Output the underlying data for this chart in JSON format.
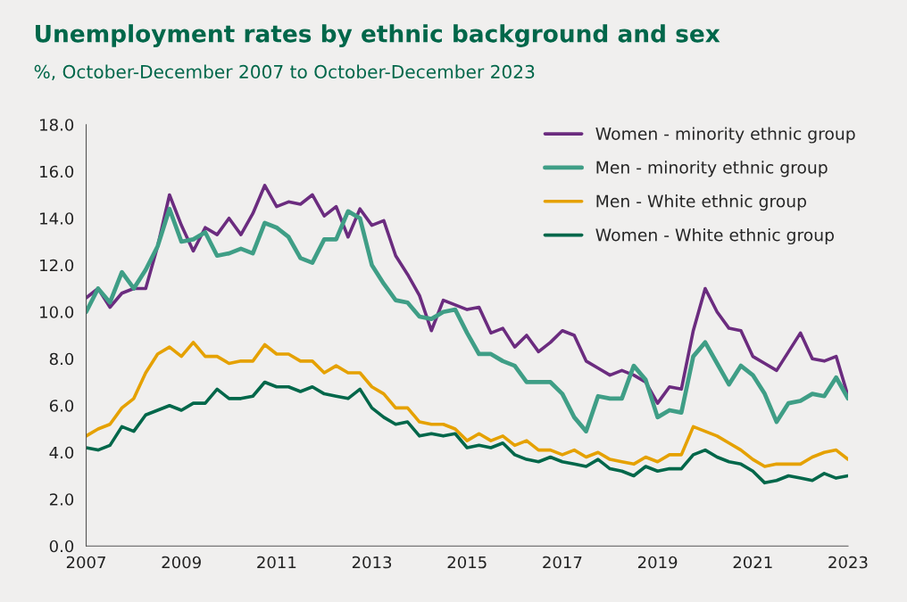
{
  "chart_data": {
    "type": "line",
    "title": "Unemployment rates by ethnic background and sex",
    "subtitle": "%, October-December 2007 to October-December 2023",
    "x": [
      2007,
      2007.25,
      2007.5,
      2007.75,
      2008,
      2008.25,
      2008.5,
      2008.75,
      2009,
      2009.25,
      2009.5,
      2009.75,
      2010,
      2010.25,
      2010.5,
      2010.75,
      2011,
      2011.25,
      2011.5,
      2011.75,
      2012,
      2012.25,
      2012.5,
      2012.75,
      2013,
      2013.25,
      2013.5,
      2013.75,
      2014,
      2014.25,
      2014.5,
      2014.75,
      2015,
      2015.25,
      2015.5,
      2015.75,
      2016,
      2016.25,
      2016.5,
      2016.75,
      2017,
      2017.25,
      2017.5,
      2017.75,
      2018,
      2018.25,
      2018.5,
      2018.75,
      2019,
      2019.25,
      2019.5,
      2019.75,
      2020,
      2020.25,
      2020.5,
      2020.75,
      2021,
      2021.25,
      2021.5,
      2021.75,
      2022,
      2022.25,
      2022.5,
      2022.75,
      2023
    ],
    "series": [
      {
        "name": "Women - minority ethnic group",
        "color": "#6b2c7f",
        "values": [
          10.6,
          11.0,
          10.2,
          10.8,
          11.0,
          11.0,
          12.8,
          15.0,
          13.7,
          12.6,
          13.6,
          13.3,
          14.0,
          13.3,
          14.2,
          15.4,
          14.5,
          14.7,
          14.6,
          15.0,
          14.1,
          14.5,
          13.2,
          14.4,
          13.7,
          13.9,
          12.4,
          11.6,
          10.7,
          9.2,
          10.5,
          10.3,
          10.1,
          10.2,
          9.1,
          9.3,
          8.5,
          9.0,
          8.3,
          8.7,
          9.2,
          9.0,
          7.9,
          7.6,
          7.3,
          7.5,
          7.3,
          7.0,
          6.1,
          6.8,
          6.7,
          9.2,
          11.0,
          10.0,
          9.3,
          9.2,
          8.1,
          7.8,
          7.5,
          8.3,
          9.1,
          8.0,
          7.9,
          8.1,
          6.4
        ]
      },
      {
        "name": "Men - minority ethnic group",
        "color": "#3f9e86",
        "values": [
          10.0,
          11.0,
          10.4,
          11.7,
          11.0,
          11.8,
          12.8,
          14.4,
          13.0,
          13.1,
          13.4,
          12.4,
          12.5,
          12.7,
          12.5,
          13.8,
          13.6,
          13.2,
          12.3,
          12.1,
          13.1,
          13.1,
          14.3,
          14.0,
          12.0,
          11.2,
          10.5,
          10.4,
          9.8,
          9.7,
          10.0,
          10.1,
          9.1,
          8.2,
          8.2,
          7.9,
          7.7,
          7.0,
          7.0,
          7.0,
          6.5,
          5.5,
          4.9,
          6.4,
          6.3,
          6.3,
          7.7,
          7.1,
          5.5,
          5.8,
          5.7,
          8.1,
          8.7,
          7.8,
          6.9,
          7.7,
          7.3,
          6.5,
          5.3,
          6.1,
          6.2,
          6.5,
          6.4,
          7.2,
          6.3
        ]
      },
      {
        "name": "Men - White ethnic group",
        "color": "#e5a100",
        "values": [
          4.7,
          5.0,
          5.2,
          5.9,
          6.3,
          7.4,
          8.2,
          8.5,
          8.1,
          8.7,
          8.1,
          8.1,
          7.8,
          7.9,
          7.9,
          8.6,
          8.2,
          8.2,
          7.9,
          7.9,
          7.4,
          7.7,
          7.4,
          7.4,
          6.8,
          6.5,
          5.9,
          5.9,
          5.3,
          5.2,
          5.2,
          5.0,
          4.5,
          4.8,
          4.5,
          4.7,
          4.3,
          4.5,
          4.1,
          4.1,
          3.9,
          4.1,
          3.8,
          4.0,
          3.7,
          3.6,
          3.5,
          3.8,
          3.6,
          3.9,
          3.9,
          5.1,
          4.9,
          4.7,
          4.4,
          4.1,
          3.7,
          3.4,
          3.5,
          3.5,
          3.5,
          3.8,
          4.0,
          4.1,
          3.7
        ]
      },
      {
        "name": "Women - White ethnic group",
        "color": "#00674a",
        "values": [
          4.2,
          4.1,
          4.3,
          5.1,
          4.9,
          5.6,
          5.8,
          6.0,
          5.8,
          6.1,
          6.1,
          6.7,
          6.3,
          6.3,
          6.4,
          7.0,
          6.8,
          6.8,
          6.6,
          6.8,
          6.5,
          6.4,
          6.3,
          6.7,
          5.9,
          5.5,
          5.2,
          5.3,
          4.7,
          4.8,
          4.7,
          4.8,
          4.2,
          4.3,
          4.2,
          4.4,
          3.9,
          3.7,
          3.6,
          3.8,
          3.6,
          3.5,
          3.4,
          3.7,
          3.3,
          3.2,
          3.0,
          3.4,
          3.2,
          3.3,
          3.3,
          3.9,
          4.1,
          3.8,
          3.6,
          3.5,
          3.2,
          2.7,
          2.8,
          3.0,
          2.9,
          2.8,
          3.1,
          2.9,
          3.0
        ]
      }
    ],
    "xlim": [
      2007,
      2023
    ],
    "xticks": [
      2007,
      2009,
      2011,
      2013,
      2015,
      2017,
      2019,
      2021,
      2023
    ],
    "ylim": [
      0,
      18
    ],
    "yticks": [
      {
        "value": 0,
        "label": "0.0"
      },
      {
        "value": 2,
        "label": "2.0"
      },
      {
        "value": 4,
        "label": "4.0"
      },
      {
        "value": 6,
        "label": "6.0"
      },
      {
        "value": 8,
        "label": "8.0"
      },
      {
        "value": 10,
        "label": "10.0"
      },
      {
        "value": 12,
        "label": "12.0"
      },
      {
        "value": 14,
        "label": "14.0"
      },
      {
        "value": 16,
        "label": "16.0"
      },
      {
        "value": 18,
        "label": "18.0"
      }
    ],
    "grid": false,
    "legend": "top right",
    "marker": "none",
    "line_style": "solid"
  }
}
